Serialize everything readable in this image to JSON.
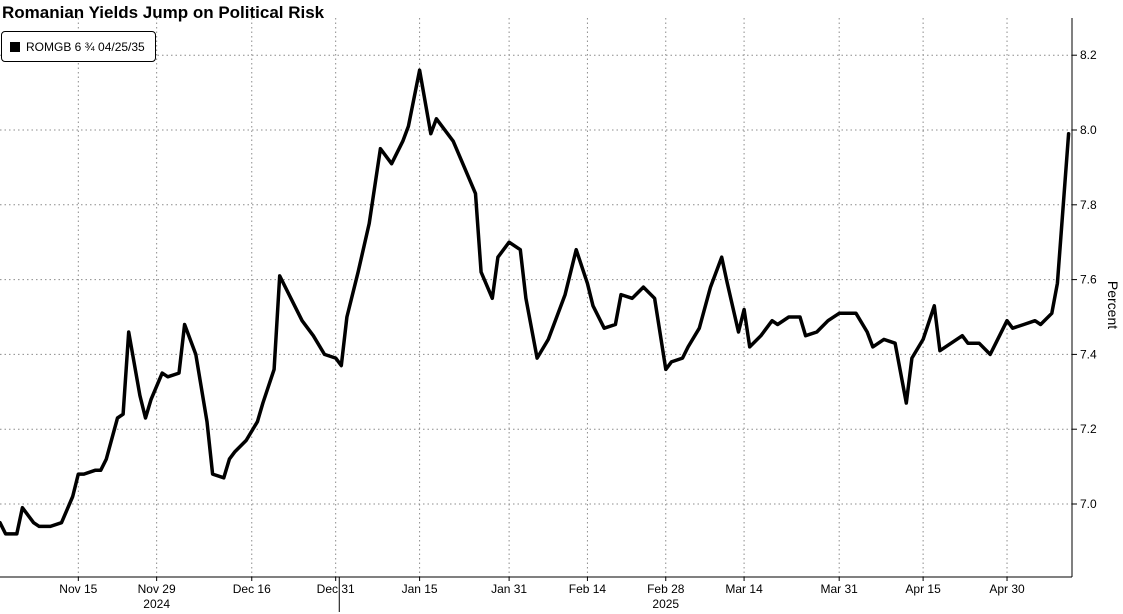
{
  "chart_data": {
    "type": "line",
    "title": "Romanian Yields Jump on Political Risk",
    "ylabel": "Percent",
    "ylim": [
      6.8,
      8.3
    ],
    "yticks": [
      7.0,
      7.2,
      7.4,
      7.6,
      7.8,
      8.0,
      8.2
    ],
    "xlim": [
      "2024-11-01",
      "2025-05-05"
    ],
    "xticks": [
      {
        "date": "2024-11-15",
        "label": "Nov 15"
      },
      {
        "date": "2024-11-29",
        "label": "Nov 29"
      },
      {
        "date": "2024-12-16",
        "label": "Dec 16"
      },
      {
        "date": "2024-12-31",
        "label": "Dec 31"
      },
      {
        "date": "2025-01-15",
        "label": "Jan 15"
      },
      {
        "date": "2025-01-31",
        "label": "Jan 31"
      },
      {
        "date": "2025-02-14",
        "label": "Feb 14"
      },
      {
        "date": "2025-02-28",
        "label": "Feb 28"
      },
      {
        "date": "2025-03-14",
        "label": "Mar 14"
      },
      {
        "date": "2025-03-31",
        "label": "Mar 31"
      },
      {
        "date": "2025-04-15",
        "label": "Apr 15"
      },
      {
        "date": "2025-04-30",
        "label": "Apr 30"
      }
    ],
    "year_labels": [
      {
        "date": "2024-11-29",
        "label": "2024"
      },
      {
        "date": "2025-02-28",
        "label": "2025"
      }
    ],
    "year_divider": "2025-01-01",
    "grid": true,
    "legend_position": "top-left",
    "series": [
      {
        "name": "ROMGB 6 ¾ 04/25/35",
        "color": "#000000",
        "points": [
          [
            "2024-11-01",
            6.95
          ],
          [
            "2024-11-02",
            6.92
          ],
          [
            "2024-11-04",
            6.92
          ],
          [
            "2024-11-05",
            6.99
          ],
          [
            "2024-11-07",
            6.95
          ],
          [
            "2024-11-08",
            6.94
          ],
          [
            "2024-11-10",
            6.94
          ],
          [
            "2024-11-12",
            6.95
          ],
          [
            "2024-11-14",
            7.02
          ],
          [
            "2024-11-15",
            7.08
          ],
          [
            "2024-11-16",
            7.08
          ],
          [
            "2024-11-18",
            7.09
          ],
          [
            "2024-11-19",
            7.09
          ],
          [
            "2024-11-20",
            7.12
          ],
          [
            "2024-11-22",
            7.23
          ],
          [
            "2024-11-23",
            7.24
          ],
          [
            "2024-11-24",
            7.46
          ],
          [
            "2024-11-26",
            7.29
          ],
          [
            "2024-11-27",
            7.23
          ],
          [
            "2024-11-28",
            7.28
          ],
          [
            "2024-11-30",
            7.35
          ],
          [
            "2024-12-01",
            7.34
          ],
          [
            "2024-12-03",
            7.35
          ],
          [
            "2024-12-04",
            7.48
          ],
          [
            "2024-12-06",
            7.4
          ],
          [
            "2024-12-08",
            7.22
          ],
          [
            "2024-12-09",
            7.08
          ],
          [
            "2024-12-11",
            7.07
          ],
          [
            "2024-12-12",
            7.12
          ],
          [
            "2024-12-13",
            7.14
          ],
          [
            "2024-12-15",
            7.17
          ],
          [
            "2024-12-17",
            7.22
          ],
          [
            "2024-12-18",
            7.27
          ],
          [
            "2024-12-20",
            7.36
          ],
          [
            "2024-12-21",
            7.61
          ],
          [
            "2024-12-23",
            7.55
          ],
          [
            "2024-12-25",
            7.49
          ],
          [
            "2024-12-27",
            7.45
          ],
          [
            "2024-12-29",
            7.4
          ],
          [
            "2024-12-31",
            7.39
          ],
          [
            "2025-01-01",
            7.37
          ],
          [
            "2025-01-02",
            7.5
          ],
          [
            "2025-01-04",
            7.62
          ],
          [
            "2025-01-06",
            7.75
          ],
          [
            "2025-01-08",
            7.95
          ],
          [
            "2025-01-10",
            7.91
          ],
          [
            "2025-01-12",
            7.97
          ],
          [
            "2025-01-13",
            8.01
          ],
          [
            "2025-01-15",
            8.16
          ],
          [
            "2025-01-17",
            7.99
          ],
          [
            "2025-01-18",
            8.03
          ],
          [
            "2025-01-21",
            7.97
          ],
          [
            "2025-01-23",
            7.9
          ],
          [
            "2025-01-25",
            7.83
          ],
          [
            "2025-01-26",
            7.62
          ],
          [
            "2025-01-28",
            7.55
          ],
          [
            "2025-01-29",
            7.66
          ],
          [
            "2025-01-31",
            7.7
          ],
          [
            "2025-02-02",
            7.68
          ],
          [
            "2025-02-03",
            7.55
          ],
          [
            "2025-02-05",
            7.39
          ],
          [
            "2025-02-07",
            7.44
          ],
          [
            "2025-02-08",
            7.48
          ],
          [
            "2025-02-10",
            7.56
          ],
          [
            "2025-02-12",
            7.68
          ],
          [
            "2025-02-14",
            7.59
          ],
          [
            "2025-02-15",
            7.53
          ],
          [
            "2025-02-17",
            7.47
          ],
          [
            "2025-02-19",
            7.48
          ],
          [
            "2025-02-20",
            7.56
          ],
          [
            "2025-02-22",
            7.55
          ],
          [
            "2025-02-24",
            7.58
          ],
          [
            "2025-02-26",
            7.55
          ],
          [
            "2025-02-28",
            7.36
          ],
          [
            "2025-03-01",
            7.38
          ],
          [
            "2025-03-03",
            7.39
          ],
          [
            "2025-03-04",
            7.42
          ],
          [
            "2025-03-06",
            7.47
          ],
          [
            "2025-03-08",
            7.58
          ],
          [
            "2025-03-10",
            7.66
          ],
          [
            "2025-03-11",
            7.59
          ],
          [
            "2025-03-13",
            7.46
          ],
          [
            "2025-03-14",
            7.52
          ],
          [
            "2025-03-15",
            7.42
          ],
          [
            "2025-03-17",
            7.45
          ],
          [
            "2025-03-19",
            7.49
          ],
          [
            "2025-03-20",
            7.48
          ],
          [
            "2025-03-22",
            7.5
          ],
          [
            "2025-03-24",
            7.5
          ],
          [
            "2025-03-25",
            7.45
          ],
          [
            "2025-03-27",
            7.46
          ],
          [
            "2025-03-29",
            7.49
          ],
          [
            "2025-03-31",
            7.51
          ],
          [
            "2025-04-01",
            7.51
          ],
          [
            "2025-04-03",
            7.51
          ],
          [
            "2025-04-05",
            7.46
          ],
          [
            "2025-04-06",
            7.42
          ],
          [
            "2025-04-08",
            7.44
          ],
          [
            "2025-04-10",
            7.43
          ],
          [
            "2025-04-12",
            7.27
          ],
          [
            "2025-04-13",
            7.39
          ],
          [
            "2025-04-15",
            7.44
          ],
          [
            "2025-04-17",
            7.53
          ],
          [
            "2025-04-18",
            7.41
          ],
          [
            "2025-04-20",
            7.43
          ],
          [
            "2025-04-22",
            7.45
          ],
          [
            "2025-04-23",
            7.43
          ],
          [
            "2025-04-25",
            7.43
          ],
          [
            "2025-04-27",
            7.4
          ],
          [
            "2025-04-28",
            7.43
          ],
          [
            "2025-04-30",
            7.49
          ],
          [
            "2025-05-01",
            7.47
          ],
          [
            "2025-05-03",
            7.48
          ],
          [
            "2025-05-05",
            7.49
          ],
          [
            "2025-05-06",
            7.48
          ],
          [
            "2025-05-08",
            7.51
          ],
          [
            "2025-05-09",
            7.59
          ],
          [
            "2025-05-11",
            7.99
          ]
        ]
      }
    ]
  }
}
